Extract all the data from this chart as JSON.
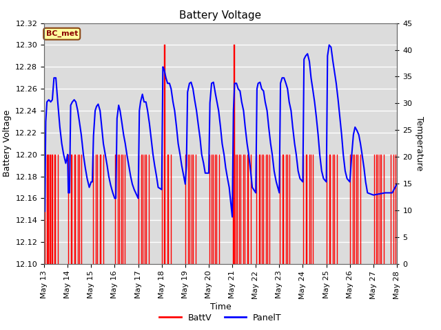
{
  "title": "Battery Voltage",
  "xlabel": "Time",
  "ylabel_left": "Battery Voltage",
  "ylabel_right": "Temperature",
  "ylim_left": [
    12.1,
    12.32
  ],
  "ylim_right": [
    0,
    45
  ],
  "yticks_left": [
    12.1,
    12.12,
    12.14,
    12.16,
    12.18,
    12.2,
    12.22,
    12.24,
    12.26,
    12.28,
    12.3,
    12.32
  ],
  "yticks_right": [
    0,
    5,
    10,
    15,
    20,
    25,
    30,
    35,
    40,
    45
  ],
  "xtick_labels": [
    "May 13",
    "May 14",
    "May 15",
    "May 16",
    "May 17",
    "May 18",
    "May 19",
    "May 20",
    "May 21",
    "May 22",
    "May 23",
    "May 24",
    "May 25",
    "May 26",
    "May 27",
    "May 28"
  ],
  "station_label": "BC_met",
  "station_label_color": "#8B0000",
  "station_bg_color": "#FFFFA0",
  "batt_color": "#FF0000",
  "panel_color": "#0000FF",
  "background_color": "#DCDCDC",
  "legend_batt": "BattV",
  "legend_panel": "PanelT",
  "grid_color": "#FFFFFF",
  "title_fontsize": 11,
  "label_fontsize": 9,
  "tick_fontsize": 8,
  "batt_data": [
    [
      13.02,
      12.2
    ],
    [
      13.06,
      12.1
    ],
    [
      13.09,
      12.1
    ],
    [
      13.11,
      12.2
    ],
    [
      13.14,
      12.2
    ],
    [
      13.17,
      12.1
    ],
    [
      13.19,
      12.2
    ],
    [
      13.22,
      12.2
    ],
    [
      13.25,
      12.1
    ],
    [
      13.27,
      12.2
    ],
    [
      13.31,
      12.2
    ],
    [
      13.35,
      12.2
    ],
    [
      13.38,
      12.1
    ],
    [
      13.41,
      12.1
    ],
    [
      13.44,
      12.2
    ],
    [
      13.48,
      12.2
    ],
    [
      13.52,
      12.1
    ],
    [
      13.56,
      12.1
    ],
    [
      13.58,
      12.2
    ],
    [
      14.02,
      12.2
    ],
    [
      14.06,
      12.1
    ],
    [
      14.1,
      12.1
    ],
    [
      14.13,
      12.2
    ],
    [
      14.17,
      12.2
    ],
    [
      14.21,
      12.1
    ],
    [
      14.25,
      12.1
    ],
    [
      14.28,
      12.2
    ],
    [
      14.33,
      12.2
    ],
    [
      14.36,
      12.1
    ],
    [
      14.4,
      12.1
    ],
    [
      14.43,
      12.2
    ],
    [
      14.48,
      12.2
    ],
    [
      14.52,
      12.1
    ],
    [
      14.55,
      12.1
    ],
    [
      14.58,
      12.2
    ],
    [
      15.08,
      12.2
    ],
    [
      15.13,
      12.1
    ],
    [
      15.17,
      12.1
    ],
    [
      15.21,
      12.2
    ],
    [
      15.25,
      12.2
    ],
    [
      15.29,
      12.1
    ],
    [
      15.33,
      12.1
    ],
    [
      15.37,
      12.2
    ],
    [
      15.41,
      12.2
    ],
    [
      15.45,
      12.1
    ],
    [
      15.48,
      12.1
    ],
    [
      15.52,
      12.2
    ],
    [
      16.02,
      12.2
    ],
    [
      16.06,
      12.1
    ],
    [
      16.1,
      12.1
    ],
    [
      16.14,
      12.2
    ],
    [
      16.18,
      12.2
    ],
    [
      16.22,
      12.1
    ],
    [
      16.26,
      12.1
    ],
    [
      16.29,
      12.2
    ],
    [
      16.33,
      12.2
    ],
    [
      16.37,
      12.1
    ],
    [
      16.4,
      12.1
    ],
    [
      16.44,
      12.2
    ],
    [
      17.02,
      12.2
    ],
    [
      17.06,
      12.1
    ],
    [
      17.1,
      12.1
    ],
    [
      17.14,
      12.2
    ],
    [
      17.18,
      12.2
    ],
    [
      17.22,
      12.1
    ],
    [
      17.26,
      12.1
    ],
    [
      17.29,
      12.2
    ],
    [
      17.33,
      12.2
    ],
    [
      17.37,
      12.1
    ],
    [
      17.4,
      12.1
    ],
    [
      17.44,
      12.2
    ],
    [
      18.02,
      12.2
    ],
    [
      18.06,
      12.1
    ],
    [
      18.09,
      12.3
    ],
    [
      18.13,
      12.3
    ],
    [
      18.17,
      12.1
    ],
    [
      18.2,
      12.1
    ],
    [
      18.24,
      12.2
    ],
    [
      18.28,
      12.2
    ],
    [
      18.32,
      12.1
    ],
    [
      18.35,
      12.1
    ],
    [
      18.38,
      12.2
    ],
    [
      19.02,
      12.2
    ],
    [
      19.06,
      12.1
    ],
    [
      19.09,
      12.1
    ],
    [
      19.13,
      12.2
    ],
    [
      19.17,
      12.2
    ],
    [
      19.21,
      12.1
    ],
    [
      19.25,
      12.1
    ],
    [
      19.28,
      12.2
    ],
    [
      19.33,
      12.2
    ],
    [
      19.37,
      12.1
    ],
    [
      19.4,
      12.1
    ],
    [
      19.44,
      12.2
    ],
    [
      20.02,
      12.2
    ],
    [
      20.06,
      12.1
    ],
    [
      20.09,
      12.1
    ],
    [
      20.13,
      12.2
    ],
    [
      20.17,
      12.2
    ],
    [
      20.21,
      12.1
    ],
    [
      20.25,
      12.1
    ],
    [
      20.28,
      12.2
    ],
    [
      20.33,
      12.2
    ],
    [
      20.37,
      12.1
    ],
    [
      20.4,
      12.1
    ],
    [
      20.44,
      12.2
    ],
    [
      21.02,
      12.2
    ],
    [
      21.05,
      12.3
    ],
    [
      21.08,
      12.3
    ],
    [
      21.12,
      12.1
    ],
    [
      21.15,
      12.2
    ],
    [
      21.19,
      12.2
    ],
    [
      21.23,
      12.1
    ],
    [
      21.27,
      12.1
    ],
    [
      21.3,
      12.2
    ],
    [
      21.35,
      12.2
    ],
    [
      21.39,
      12.1
    ],
    [
      21.43,
      12.1
    ],
    [
      21.47,
      12.2
    ],
    [
      21.52,
      12.2
    ],
    [
      21.55,
      12.1
    ],
    [
      21.58,
      12.1
    ],
    [
      21.63,
      12.2
    ],
    [
      21.67,
      12.2
    ],
    [
      21.71,
      12.1
    ],
    [
      21.75,
      12.1
    ],
    [
      21.79,
      12.2
    ],
    [
      22.02,
      12.2
    ],
    [
      22.06,
      12.1
    ],
    [
      22.09,
      12.1
    ],
    [
      22.13,
      12.2
    ],
    [
      22.17,
      12.2
    ],
    [
      22.21,
      12.1
    ],
    [
      22.25,
      12.2
    ],
    [
      22.33,
      12.2
    ],
    [
      22.37,
      12.1
    ],
    [
      22.4,
      12.1
    ],
    [
      22.44,
      12.2
    ],
    [
      22.48,
      12.2
    ],
    [
      22.52,
      12.1
    ],
    [
      22.55,
      12.1
    ],
    [
      22.58,
      12.2
    ],
    [
      23.02,
      12.2
    ],
    [
      23.06,
      12.1
    ],
    [
      23.09,
      12.1
    ],
    [
      23.13,
      12.2
    ],
    [
      23.17,
      12.2
    ],
    [
      23.21,
      12.1
    ],
    [
      23.25,
      12.1
    ],
    [
      23.28,
      12.2
    ],
    [
      23.33,
      12.2
    ],
    [
      23.37,
      12.1
    ],
    [
      23.4,
      12.1
    ],
    [
      23.44,
      12.2
    ],
    [
      24.02,
      12.2
    ],
    [
      24.06,
      12.1
    ],
    [
      24.09,
      12.1
    ],
    [
      24.13,
      12.2
    ],
    [
      24.17,
      12.2
    ],
    [
      24.21,
      12.1
    ],
    [
      24.25,
      12.1
    ],
    [
      24.28,
      12.2
    ],
    [
      24.33,
      12.2
    ],
    [
      24.37,
      12.1
    ],
    [
      24.4,
      12.1
    ],
    [
      24.44,
      12.2
    ],
    [
      25.02,
      12.2
    ],
    [
      25.06,
      12.1
    ],
    [
      25.09,
      12.1
    ],
    [
      25.13,
      12.2
    ],
    [
      25.17,
      12.2
    ],
    [
      25.21,
      12.1
    ],
    [
      25.25,
      12.1
    ],
    [
      25.28,
      12.2
    ],
    [
      25.33,
      12.2
    ],
    [
      25.37,
      12.1
    ],
    [
      25.4,
      12.1
    ],
    [
      25.44,
      12.2
    ],
    [
      26.02,
      12.2
    ],
    [
      26.06,
      12.1
    ],
    [
      26.09,
      12.1
    ],
    [
      26.13,
      12.2
    ],
    [
      26.17,
      12.2
    ],
    [
      26.21,
      12.1
    ],
    [
      26.25,
      12.1
    ],
    [
      26.28,
      12.2
    ],
    [
      26.33,
      12.2
    ],
    [
      26.37,
      12.1
    ],
    [
      26.4,
      12.1
    ],
    [
      26.44,
      12.2
    ],
    [
      27.02,
      12.2
    ],
    [
      27.06,
      12.1
    ],
    [
      27.09,
      12.1
    ],
    [
      27.13,
      12.2
    ],
    [
      27.17,
      12.2
    ],
    [
      27.21,
      12.1
    ],
    [
      27.25,
      12.1
    ],
    [
      27.28,
      12.2
    ],
    [
      27.33,
      12.2
    ],
    [
      27.37,
      12.1
    ],
    [
      27.4,
      12.1
    ],
    [
      27.44,
      12.2
    ],
    [
      27.75,
      12.2
    ],
    [
      27.85,
      12.2
    ],
    [
      27.95,
      12.2
    ]
  ],
  "panel_data": [
    [
      13.0,
      12.157
    ],
    [
      13.03,
      12.148
    ],
    [
      13.07,
      12.23
    ],
    [
      13.12,
      12.248
    ],
    [
      13.2,
      12.25
    ],
    [
      13.28,
      12.248
    ],
    [
      13.35,
      12.25
    ],
    [
      13.42,
      12.27
    ],
    [
      13.5,
      12.27
    ],
    [
      13.58,
      12.248
    ],
    [
      13.67,
      12.225
    ],
    [
      13.75,
      12.21
    ],
    [
      13.83,
      12.2
    ],
    [
      13.92,
      12.192
    ],
    [
      14.0,
      12.2
    ],
    [
      14.03,
      12.165
    ],
    [
      14.08,
      12.165
    ],
    [
      14.13,
      12.245
    ],
    [
      14.2,
      12.248
    ],
    [
      14.28,
      12.25
    ],
    [
      14.35,
      12.248
    ],
    [
      14.43,
      12.24
    ],
    [
      14.5,
      12.23
    ],
    [
      14.58,
      12.218
    ],
    [
      14.67,
      12.2
    ],
    [
      14.75,
      12.188
    ],
    [
      14.83,
      12.178
    ],
    [
      14.92,
      12.17
    ],
    [
      15.0,
      12.175
    ],
    [
      15.05,
      12.175
    ],
    [
      15.1,
      12.217
    ],
    [
      15.17,
      12.24
    ],
    [
      15.23,
      12.244
    ],
    [
      15.3,
      12.246
    ],
    [
      15.38,
      12.24
    ],
    [
      15.45,
      12.225
    ],
    [
      15.52,
      12.21
    ],
    [
      15.6,
      12.2
    ],
    [
      15.68,
      12.19
    ],
    [
      15.75,
      12.18
    ],
    [
      15.83,
      12.172
    ],
    [
      15.92,
      12.165
    ],
    [
      16.0,
      12.16
    ],
    [
      16.05,
      12.16
    ],
    [
      16.1,
      12.233
    ],
    [
      16.17,
      12.245
    ],
    [
      16.23,
      12.24
    ],
    [
      16.3,
      12.23
    ],
    [
      16.38,
      12.218
    ],
    [
      16.45,
      12.21
    ],
    [
      16.52,
      12.2
    ],
    [
      16.6,
      12.19
    ],
    [
      16.68,
      12.18
    ],
    [
      16.75,
      12.173
    ],
    [
      16.83,
      12.168
    ],
    [
      17.0,
      12.16
    ],
    [
      17.05,
      12.24
    ],
    [
      17.1,
      12.248
    ],
    [
      17.18,
      12.255
    ],
    [
      17.25,
      12.248
    ],
    [
      17.33,
      12.248
    ],
    [
      17.4,
      12.24
    ],
    [
      17.48,
      12.228
    ],
    [
      17.55,
      12.215
    ],
    [
      17.63,
      12.2
    ],
    [
      17.7,
      12.19
    ],
    [
      17.78,
      12.18
    ],
    [
      17.85,
      12.17
    ],
    [
      18.0,
      12.168
    ],
    [
      18.05,
      12.28
    ],
    [
      18.1,
      12.278
    ],
    [
      18.18,
      12.27
    ],
    [
      18.25,
      12.265
    ],
    [
      18.33,
      12.265
    ],
    [
      18.4,
      12.26
    ],
    [
      18.48,
      12.248
    ],
    [
      18.55,
      12.24
    ],
    [
      18.63,
      12.225
    ],
    [
      18.7,
      12.21
    ],
    [
      18.78,
      12.2
    ],
    [
      18.85,
      12.19
    ],
    [
      19.0,
      12.173
    ],
    [
      19.05,
      12.19
    ],
    [
      19.1,
      12.257
    ],
    [
      19.18,
      12.265
    ],
    [
      19.25,
      12.266
    ],
    [
      19.33,
      12.26
    ],
    [
      19.4,
      12.25
    ],
    [
      19.48,
      12.24
    ],
    [
      19.55,
      12.228
    ],
    [
      19.63,
      12.215
    ],
    [
      19.7,
      12.2
    ],
    [
      19.78,
      12.192
    ],
    [
      19.85,
      12.183
    ],
    [
      20.0,
      12.183
    ],
    [
      20.05,
      12.247
    ],
    [
      20.12,
      12.265
    ],
    [
      20.2,
      12.266
    ],
    [
      20.28,
      12.256
    ],
    [
      20.35,
      12.248
    ],
    [
      20.42,
      12.24
    ],
    [
      20.5,
      12.225
    ],
    [
      20.57,
      12.21
    ],
    [
      20.65,
      12.2
    ],
    [
      20.72,
      12.188
    ],
    [
      20.8,
      12.178
    ],
    [
      20.87,
      12.17
    ],
    [
      21.0,
      12.143
    ],
    [
      21.05,
      12.24
    ],
    [
      21.1,
      12.265
    ],
    [
      21.18,
      12.265
    ],
    [
      21.25,
      12.26
    ],
    [
      21.33,
      12.258
    ],
    [
      21.4,
      12.248
    ],
    [
      21.48,
      12.24
    ],
    [
      21.55,
      12.225
    ],
    [
      21.63,
      12.21
    ],
    [
      21.7,
      12.2
    ],
    [
      21.78,
      12.185
    ],
    [
      21.85,
      12.17
    ],
    [
      22.0,
      12.165
    ],
    [
      22.05,
      12.26
    ],
    [
      22.1,
      12.265
    ],
    [
      22.18,
      12.266
    ],
    [
      22.25,
      12.26
    ],
    [
      22.33,
      12.258
    ],
    [
      22.4,
      12.248
    ],
    [
      22.48,
      12.24
    ],
    [
      22.55,
      12.225
    ],
    [
      22.63,
      12.21
    ],
    [
      22.7,
      12.2
    ],
    [
      22.78,
      12.185
    ],
    [
      22.87,
      12.175
    ],
    [
      23.0,
      12.165
    ],
    [
      23.05,
      12.265
    ],
    [
      23.12,
      12.27
    ],
    [
      23.2,
      12.27
    ],
    [
      23.28,
      12.265
    ],
    [
      23.35,
      12.26
    ],
    [
      23.42,
      12.248
    ],
    [
      23.5,
      12.24
    ],
    [
      23.57,
      12.225
    ],
    [
      23.65,
      12.21
    ],
    [
      23.72,
      12.2
    ],
    [
      23.8,
      12.185
    ],
    [
      23.88,
      12.178
    ],
    [
      24.0,
      12.175
    ],
    [
      24.05,
      12.287
    ],
    [
      24.12,
      12.29
    ],
    [
      24.2,
      12.292
    ],
    [
      24.28,
      12.285
    ],
    [
      24.35,
      12.27
    ],
    [
      24.42,
      12.26
    ],
    [
      24.5,
      12.248
    ],
    [
      24.57,
      12.235
    ],
    [
      24.65,
      12.218
    ],
    [
      24.72,
      12.2
    ],
    [
      24.8,
      12.185
    ],
    [
      24.88,
      12.178
    ],
    [
      25.0,
      12.175
    ],
    [
      25.05,
      12.29
    ],
    [
      25.12,
      12.3
    ],
    [
      25.2,
      12.298
    ],
    [
      25.28,
      12.285
    ],
    [
      25.35,
      12.275
    ],
    [
      25.42,
      12.265
    ],
    [
      25.5,
      12.25
    ],
    [
      25.57,
      12.235
    ],
    [
      25.65,
      12.218
    ],
    [
      25.72,
      12.2
    ],
    [
      25.8,
      12.185
    ],
    [
      25.88,
      12.178
    ],
    [
      26.0,
      12.175
    ],
    [
      26.08,
      12.2
    ],
    [
      26.15,
      12.218
    ],
    [
      26.22,
      12.225
    ],
    [
      26.3,
      12.222
    ],
    [
      26.38,
      12.218
    ],
    [
      26.45,
      12.21
    ],
    [
      26.52,
      12.2
    ],
    [
      26.6,
      12.188
    ],
    [
      26.67,
      12.175
    ],
    [
      26.75,
      12.165
    ],
    [
      27.0,
      12.163
    ],
    [
      27.5,
      12.165
    ],
    [
      27.8,
      12.165
    ],
    [
      28.0,
      12.173
    ]
  ]
}
